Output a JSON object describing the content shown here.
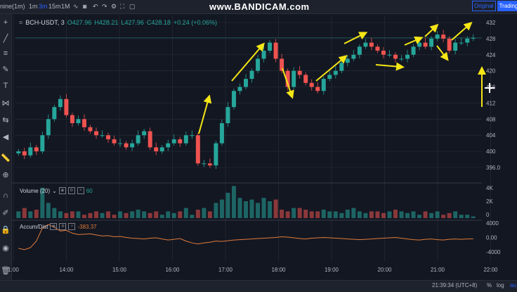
{
  "toolbar": {
    "timeframes": [
      "nine(1m)",
      "1m",
      "3m",
      "15m",
      "1M"
    ],
    "active": "3m"
  },
  "watermark": "www.BANDICAM.com",
  "view_switch": {
    "original": "Original",
    "tradingview": "TradingV"
  },
  "legend": {
    "symbol": "BCH-USDT, 3",
    "open": "O427.96",
    "high": "H428.21",
    "low": "L427.96",
    "close": "C428.18",
    "change": "+0.24 (+0.06%)"
  },
  "volume_legend": {
    "label": "Volume (20)",
    "value": "60"
  },
  "accum_legend": {
    "label": "Accum/Dist",
    "value": "-383.37"
  },
  "status": {
    "clock": "21:39:34 (UTC+8)",
    "percent": "%",
    "log": "log",
    "auto": "au"
  },
  "colors": {
    "up": "#26a69a",
    "down": "#ef5350",
    "arrow": "#f5e616",
    "ad": "#e07b39",
    "grid": "#2a2e39"
  },
  "chart_data": {
    "type": "candlestick",
    "symbol": "BCH-USDT",
    "interval": "3m",
    "price_ticks": [
      432,
      428,
      424,
      420,
      416,
      412,
      408,
      404,
      400,
      396
    ],
    "price_tick_labels": [
      "432",
      "428",
      "424",
      "420",
      "416",
      "412",
      "408",
      "404",
      "400",
      "396.0"
    ],
    "volume_tick_labels": [
      "4K",
      "2K",
      "0"
    ],
    "ad_tick_labels": [
      "4000",
      "0.00",
      "-4000"
    ],
    "time_labels": [
      "1:00",
      "14:00",
      "15:00",
      "16:00",
      "17:00",
      "18:00",
      "19:00",
      "20:00",
      "21:00",
      "22:00"
    ],
    "last_price": 428.18,
    "price_path": [
      400,
      399,
      401,
      400,
      404,
      408,
      411,
      413,
      409,
      407,
      408,
      406,
      405,
      404,
      404,
      403,
      402,
      402,
      401,
      402,
      404,
      405,
      401,
      400,
      401,
      402,
      403,
      402,
      404,
      404,
      397,
      397,
      396.5,
      402,
      407,
      411,
      415,
      416,
      418,
      420,
      423,
      425,
      427,
      423,
      420,
      416,
      420,
      419,
      417,
      416,
      415,
      418,
      419,
      420,
      422,
      423,
      424,
      426,
      427,
      426,
      425,
      424,
      424,
      423,
      423,
      424,
      426,
      427,
      426,
      428,
      429,
      428,
      425,
      427,
      427,
      428,
      428.18
    ],
    "volume_levels": [
      0.2,
      0.3,
      0.2,
      0.25,
      0.9,
      0.45,
      0.3,
      0.2,
      0.15,
      0.2,
      0.2,
      0.1,
      0.15,
      0.2,
      0.15,
      0.2,
      0.1,
      0.2,
      0.15,
      0.2,
      0.25,
      0.2,
      0.15,
      0.2,
      0.1,
      0.2,
      0.15,
      0.2,
      0.3,
      0.1,
      0.25,
      0.3,
      0.2,
      0.45,
      0.55,
      0.75,
      0.95,
      0.6,
      0.5,
      0.55,
      0.45,
      0.6,
      0.5,
      0.55,
      0.25,
      0.2,
      0.3,
      0.3,
      0.25,
      0.2,
      0.2,
      0.25,
      0.2,
      0.2,
      0.15,
      0.25,
      0.3,
      0.2,
      0.15,
      0.2,
      0.2,
      0.15,
      0.2,
      0.25,
      0.2,
      0.15,
      0.2,
      0.1,
      0.2,
      0.15,
      0.2,
      0.1,
      0.15,
      0.2,
      0.1,
      0.1,
      0.05
    ],
    "ad_path": [
      -3000,
      -3400,
      -2800,
      -1000,
      2600,
      3600,
      2800,
      1800,
      2000,
      1200,
      800,
      900,
      1000,
      700,
      400,
      500,
      200,
      300,
      0,
      -200,
      -300,
      -400,
      -200,
      -100,
      -400,
      -700,
      -500,
      -300,
      -1000,
      -1500,
      -1800,
      -1500,
      -1300,
      -1000,
      -1100,
      -900,
      -700,
      -600,
      -500,
      -400,
      -300,
      -200,
      -100,
      0,
      200,
      100,
      -100,
      -300,
      -400,
      -200,
      -100,
      0,
      -100,
      -200,
      -300,
      -400,
      -500,
      -600,
      -500,
      -400,
      -300,
      -200,
      -100,
      0,
      -200,
      -400,
      -600,
      -700,
      -500,
      -400,
      -600,
      -700,
      -500,
      -400,
      -500,
      -400,
      -383
    ]
  }
}
